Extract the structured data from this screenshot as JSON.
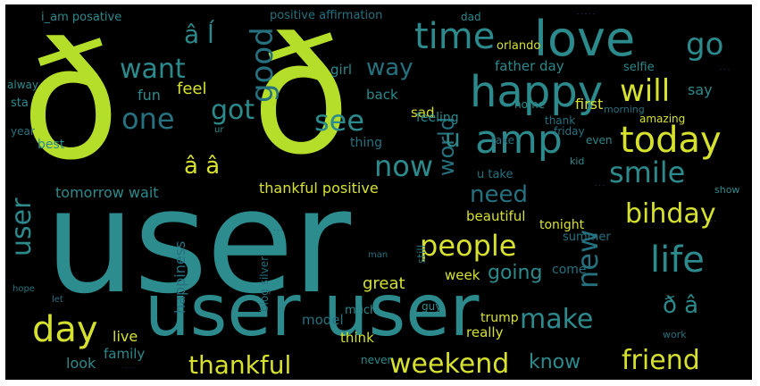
{
  "wordcloud": {
    "colors": {
      "background": "#000000",
      "lime": "#b5de2b",
      "yellow": "#d6e12f",
      "teal": "#2c8a8c",
      "teal_dark": "#26717f",
      "green": "#5ec962",
      "blue": "#3b528b",
      "purple": "#472d7b"
    },
    "words": [
      {
        "text": "user",
        "color": "#2d8c8e"
      },
      {
        "text": "ð",
        "color": "#b5de2b"
      },
      {
        "text": "ð",
        "color": "#b5de2b"
      },
      {
        "text": "user user",
        "color": "#2c8a8c"
      },
      {
        "text": "love",
        "color": "#2c8a8c"
      },
      {
        "text": "happy",
        "color": "#2c8a8c"
      },
      {
        "text": "amp",
        "color": "#2c8a8c"
      },
      {
        "text": "time",
        "color": "#2c8a8c"
      },
      {
        "text": "today",
        "color": "#d6e12f"
      },
      {
        "text": "smile",
        "color": "#2c8a8c"
      },
      {
        "text": "life",
        "color": "#2c8a8c"
      },
      {
        "text": "day",
        "color": "#d6e12f"
      },
      {
        "text": "people",
        "color": "#d6e12f"
      },
      {
        "text": "weekend",
        "color": "#d6e12f"
      },
      {
        "text": "friend",
        "color": "#d6e12f"
      },
      {
        "text": "thankful",
        "color": "#d6e12f"
      },
      {
        "text": "make",
        "color": "#2c8a8c"
      },
      {
        "text": "will",
        "color": "#d6e12f"
      },
      {
        "text": "bihday",
        "color": "#d6e12f"
      },
      {
        "text": "go",
        "color": "#2c8a8c"
      },
      {
        "text": "want",
        "color": "#2c8a8c"
      },
      {
        "text": "got",
        "color": "#2c8a8c"
      },
      {
        "text": "see",
        "color": "#2c8a8c"
      },
      {
        "text": "now",
        "color": "#2c8a8c"
      },
      {
        "text": "one",
        "color": "#26717f"
      },
      {
        "text": "good",
        "color": "#26717f"
      },
      {
        "text": "â ĺ",
        "color": "#2c8a8c"
      },
      {
        "text": "â â",
        "color": "#d6e12f"
      },
      {
        "text": "user",
        "color": "#2c8a8c"
      },
      {
        "text": "ð â",
        "color": "#2c8a8c"
      },
      {
        "text": "need",
        "color": "#26717f"
      },
      {
        "text": "new",
        "color": "#26717f"
      },
      {
        "text": "way",
        "color": "#26717f"
      },
      {
        "text": "world",
        "color": "#26717f"
      },
      {
        "text": "u",
        "color": "#2c8a8c"
      },
      {
        "text": "going",
        "color": "#2c8a8c"
      },
      {
        "text": "know",
        "color": "#2c8a8c"
      },
      {
        "text": "thankful positive",
        "color": "#d6e12f"
      },
      {
        "text": "tomorrow wait",
        "color": "#2c8a8c"
      },
      {
        "text": "beautiful",
        "color": "#d6e12f"
      },
      {
        "text": "happiness",
        "color": "#26717f"
      },
      {
        "text": "father day",
        "color": "#2c8a8c"
      },
      {
        "text": "girl",
        "color": "#2c8a8c"
      },
      {
        "text": "feel",
        "color": "#d6e12f"
      },
      {
        "text": "fun",
        "color": "#2c8a8c"
      },
      {
        "text": "back",
        "color": "#2c8a8c"
      },
      {
        "text": "great",
        "color": "#d6e12f"
      },
      {
        "text": "week",
        "color": "#d6e12f"
      },
      {
        "text": "live",
        "color": "#d6e12f"
      },
      {
        "text": "family",
        "color": "#2c8a8c"
      },
      {
        "text": "look",
        "color": "#2c8a8c"
      },
      {
        "text": "model",
        "color": "#26717f"
      },
      {
        "text": "think",
        "color": "#d6e12f"
      },
      {
        "text": "really",
        "color": "#d6e12f"
      },
      {
        "text": "say",
        "color": "#2c8a8c"
      },
      {
        "text": "first",
        "color": "#d6e12f"
      },
      {
        "text": "sad",
        "color": "#d6e12f"
      },
      {
        "text": "thing",
        "color": "#26717f"
      },
      {
        "text": "feeling",
        "color": "#2c8a8c"
      },
      {
        "text": "take",
        "color": "#26717f"
      },
      {
        "text": "u take",
        "color": "#26717f"
      },
      {
        "text": "tonight",
        "color": "#d6e12f"
      },
      {
        "text": "summer",
        "color": "#26717f"
      },
      {
        "text": "come",
        "color": "#26717f"
      },
      {
        "text": "trump",
        "color": "#d6e12f"
      },
      {
        "text": "much",
        "color": "#2c8a8c"
      },
      {
        "text": "orlando",
        "color": "#d6e12f"
      },
      {
        "text": "positive affirmation",
        "color": "#26717f"
      },
      {
        "text": "i_am posative",
        "color": "#2c8a8c"
      },
      {
        "text": "dad",
        "color": "#2c8a8c"
      },
      {
        "text": "home",
        "color": "#2c8a8c"
      },
      {
        "text": "selfie",
        "color": "#2c8a8c"
      },
      {
        "text": "amazing",
        "color": "#d6e12f"
      },
      {
        "text": "thank",
        "color": "#26717f"
      },
      {
        "text": "friday",
        "color": "#26717f"
      },
      {
        "text": "even",
        "color": "#2c8a8c"
      },
      {
        "text": "best",
        "color": "#2c8a8c"
      },
      {
        "text": "year",
        "color": "#26717f"
      },
      {
        "text": "sta",
        "color": "#2c8a8c"
      },
      {
        "text": "alway",
        "color": "#2c8a8c"
      },
      {
        "text": "blog silver",
        "color": "#26717f"
      },
      {
        "text": "guy",
        "color": "#2c8a8c"
      },
      {
        "text": "never",
        "color": "#2c8a8c"
      },
      {
        "text": "morning",
        "color": "#26717f"
      },
      {
        "text": "kid",
        "color": "#2c8a8c"
      },
      {
        "text": "show",
        "color": "#2c8a8c"
      },
      {
        "text": "still",
        "color": "#26717f"
      },
      {
        "text": "work",
        "color": "#26717f"
      },
      {
        "text": "hope",
        "color": "#26717f"
      },
      {
        "text": "let",
        "color": "#26717f"
      },
      {
        "text": "man",
        "color": "#26717f"
      },
      {
        "text": "ur",
        "color": "#2c8a8c"
      }
    ]
  }
}
